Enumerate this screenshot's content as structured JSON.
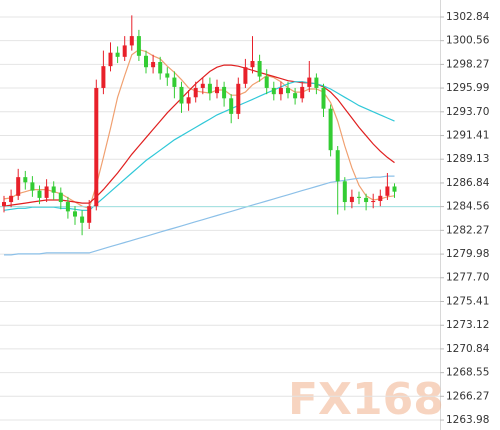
{
  "chart_data": {
    "type": "candlestick",
    "open": [
      1284.6,
      1285.0,
      1285.6,
      1287.4,
      1286.9,
      1286.1,
      1285.4,
      1286.5,
      1285.9,
      1285.0,
      1284.1,
      1283.6,
      1283.0,
      1284.6,
      1296.0,
      1298.1,
      1299.4,
      1299.0,
      1300.1,
      1301.0,
      1299.1,
      1298.0,
      1298.5,
      1297.4,
      1297.0,
      1296.1,
      1294.5,
      1295.1,
      1296.0,
      1296.4,
      1295.5,
      1296.1,
      1295.0,
      1293.5,
      1296.4,
      1298.0,
      1298.6,
      1297.1,
      1296.0,
      1295.4,
      1296.0,
      1295.5,
      1295.0,
      1296.1,
      1297.0,
      1296.0,
      1294.0,
      1290.0,
      1287.0,
      1285.0,
      1285.5,
      1285.4,
      1285.0,
      1285.1,
      1285.6,
      1286.5
    ],
    "high": [
      1285.6,
      1286.2,
      1288.2,
      1288.0,
      1287.5,
      1286.6,
      1287.2,
      1287.0,
      1286.4,
      1285.5,
      1284.6,
      1284.2,
      1285.2,
      1296.8,
      1299.6,
      1300.4,
      1300.0,
      1301.0,
      1303.0,
      1301.6,
      1299.6,
      1299.2,
      1299.0,
      1298.0,
      1297.6,
      1296.6,
      1295.8,
      1296.6,
      1297.0,
      1297.0,
      1296.8,
      1296.6,
      1295.4,
      1297.0,
      1298.8,
      1301.0,
      1299.2,
      1297.8,
      1296.6,
      1296.6,
      1296.6,
      1296.0,
      1296.6,
      1298.6,
      1297.4,
      1296.4,
      1294.4,
      1290.4,
      1287.4,
      1286.2,
      1286.0,
      1285.8,
      1285.8,
      1286.2,
      1287.8,
      1286.8
    ],
    "low": [
      1284.0,
      1284.5,
      1285.2,
      1286.2,
      1285.5,
      1284.8,
      1285.0,
      1285.2,
      1284.3,
      1283.4,
      1282.8,
      1281.8,
      1282.4,
      1284.2,
      1295.4,
      1297.6,
      1298.4,
      1298.6,
      1299.6,
      1298.6,
      1297.4,
      1297.4,
      1296.8,
      1296.2,
      1295.0,
      1293.6,
      1293.8,
      1294.6,
      1295.4,
      1294.8,
      1295.0,
      1294.2,
      1292.6,
      1293.0,
      1296.0,
      1297.4,
      1296.6,
      1295.4,
      1294.8,
      1294.8,
      1295.0,
      1294.4,
      1294.6,
      1295.6,
      1295.4,
      1293.2,
      1289.4,
      1283.8,
      1284.2,
      1284.4,
      1284.8,
      1284.2,
      1284.4,
      1284.6,
      1285.2,
      1285.4
    ],
    "close": [
      1285.0,
      1285.6,
      1287.4,
      1286.9,
      1286.1,
      1285.4,
      1286.5,
      1285.9,
      1285.0,
      1284.1,
      1283.6,
      1283.0,
      1284.6,
      1296.0,
      1298.1,
      1299.4,
      1299.0,
      1300.1,
      1301.0,
      1299.1,
      1298.0,
      1298.5,
      1297.4,
      1297.0,
      1296.1,
      1294.5,
      1295.1,
      1296.0,
      1296.4,
      1295.5,
      1296.1,
      1295.0,
      1293.5,
      1296.4,
      1298.0,
      1298.6,
      1297.1,
      1296.0,
      1295.4,
      1296.0,
      1295.5,
      1295.0,
      1296.1,
      1297.0,
      1296.0,
      1294.0,
      1290.0,
      1287.0,
      1285.0,
      1285.5,
      1285.4,
      1285.0,
      1285.1,
      1285.6,
      1286.5,
      1286.0
    ],
    "up_color": "#e8202a",
    "down_color": "#33cc33",
    "series": [
      {
        "color": "#f0a070",
        "values": [
          1285.3,
          1285.4,
          1285.8,
          1286.0,
          1286.2,
          1286.2,
          1286.2,
          1286.0,
          1285.8,
          1285.4,
          1285.0,
          1284.6,
          1284.4,
          1286.6,
          1289.3,
          1292.1,
          1295.1,
          1297.2,
          1299.2,
          1299.7,
          1299.5,
          1299.1,
          1298.8,
          1298.1,
          1297.5,
          1296.8,
          1296.0,
          1295.7,
          1295.6,
          1295.5,
          1295.8,
          1295.8,
          1295.3,
          1295.3,
          1295.6,
          1296.3,
          1296.7,
          1297.2,
          1297.0,
          1296.6,
          1296.0,
          1295.6,
          1295.6,
          1295.9,
          1295.9,
          1295.6,
          1294.6,
          1292.8,
          1290.4,
          1288.3,
          1286.6,
          1285.6,
          1285.2,
          1285.3,
          1285.5,
          1285.6
        ]
      },
      {
        "color": "#e02020",
        "values": [
          1284.6,
          1284.7,
          1284.8,
          1284.9,
          1285.0,
          1285.1,
          1285.2,
          1285.2,
          1285.2,
          1285.1,
          1285.0,
          1284.9,
          1284.9,
          1285.5,
          1286.2,
          1287.0,
          1287.8,
          1288.7,
          1289.6,
          1290.4,
          1291.2,
          1292.0,
          1292.8,
          1293.6,
          1294.3,
          1295.0,
          1295.7,
          1296.4,
          1297.0,
          1297.6,
          1298.0,
          1298.2,
          1298.2,
          1298.1,
          1297.9,
          1297.7,
          1297.5,
          1297.3,
          1297.1,
          1296.9,
          1296.7,
          1296.6,
          1296.5,
          1296.5,
          1296.4,
          1296.1,
          1295.6,
          1294.9,
          1294.0,
          1293.1,
          1292.2,
          1291.4,
          1290.6,
          1289.9,
          1289.3,
          1288.8
        ]
      },
      {
        "color": "#30c8d8",
        "values": [
          1284.2,
          1284.3,
          1284.4,
          1284.4,
          1284.5,
          1284.5,
          1284.5,
          1284.5,
          1284.4,
          1284.4,
          1284.3,
          1284.2,
          1284.2,
          1284.8,
          1285.4,
          1286.0,
          1286.6,
          1287.2,
          1287.8,
          1288.4,
          1289.0,
          1289.5,
          1290.0,
          1290.5,
          1291.0,
          1291.4,
          1291.8,
          1292.2,
          1292.6,
          1293.0,
          1293.4,
          1293.7,
          1294.0,
          1294.3,
          1294.6,
          1294.9,
          1295.2,
          1295.5,
          1295.8,
          1296.1,
          1296.4,
          1296.6,
          1296.6,
          1296.5,
          1296.4,
          1296.2,
          1295.9,
          1295.5,
          1295.1,
          1294.7,
          1294.3,
          1294.0,
          1293.7,
          1293.4,
          1293.1,
          1292.8
        ]
      },
      {
        "color": "#8cc0e8",
        "values": [
          1279.9,
          1279.9,
          1280.0,
          1280.0,
          1280.0,
          1280.0,
          1280.1,
          1280.1,
          1280.1,
          1280.1,
          1280.1,
          1280.1,
          1280.1,
          1280.3,
          1280.5,
          1280.7,
          1280.9,
          1281.1,
          1281.3,
          1281.5,
          1281.7,
          1281.9,
          1282.1,
          1282.3,
          1282.5,
          1282.7,
          1282.9,
          1283.1,
          1283.3,
          1283.5,
          1283.7,
          1283.9,
          1284.1,
          1284.3,
          1284.5,
          1284.7,
          1284.9,
          1285.1,
          1285.3,
          1285.5,
          1285.7,
          1285.9,
          1286.1,
          1286.3,
          1286.5,
          1286.7,
          1286.9,
          1287.0,
          1287.1,
          1287.2,
          1287.3,
          1287.3,
          1287.4,
          1287.4,
          1287.5,
          1287.5
        ]
      }
    ],
    "price_line": 1284.56,
    "price_line_color": "#9ee0e0",
    "ylim": [
      1263.02,
      1304.48
    ],
    "yticks": [
      1302.84,
      1300.56,
      1298.27,
      1295.99,
      {
        "value": 1293.7,
        "label": "1293.70"
      },
      1291.41,
      1289.13,
      1286.84,
      1284.56,
      1282.27,
      1279.98,
      {
        "value": 1277.7,
        "label": "1277.70"
      },
      1275.41,
      1273.12,
      1270.84,
      1268.55,
      1266.27,
      1263.98
    ],
    "grid": true,
    "watermark": "FX168"
  }
}
